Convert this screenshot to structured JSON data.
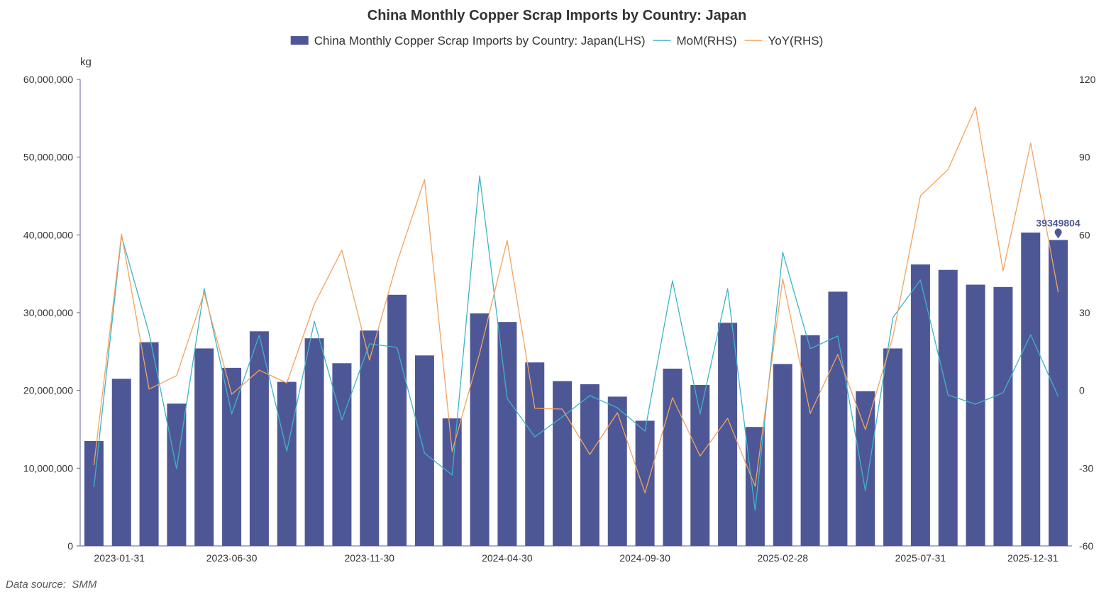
{
  "source": "Data source:  SMM",
  "colors": {
    "bar": "#4e5796",
    "mom": "#3db4c6",
    "yoy": "#f2a35e",
    "axis": "#5d6392",
    "text": "#333333"
  },
  "chart_data": {
    "type": "bar",
    "title": "China Monthly Copper Scrap Imports by Country: Japan",
    "legend_position": "top-center",
    "grid": false,
    "categories": [
      "2023-01-31",
      "2023-02-28",
      "2023-03-31",
      "2023-04-30",
      "2023-05-31",
      "2023-06-30",
      "2023-07-31",
      "2023-08-31",
      "2023-09-30",
      "2023-10-31",
      "2023-11-30",
      "2023-12-31",
      "2024-01-31",
      "2024-02-29",
      "2024-03-31",
      "2024-04-30",
      "2024-05-31",
      "2024-06-30",
      "2024-07-31",
      "2024-08-31",
      "2024-09-30",
      "2024-10-31",
      "2024-11-30",
      "2024-12-31",
      "2025-01-31",
      "2025-02-28",
      "2025-03-31",
      "2025-04-30",
      "2025-05-31",
      "2025-06-30",
      "2025-07-31",
      "2025-08-31",
      "2025-09-30",
      "2025-10-31",
      "2025-11-30",
      "2025-12-31"
    ],
    "x_tick_labels": [
      "2023-01-31",
      "2023-06-30",
      "2023-11-30",
      "2024-04-30",
      "2024-09-30",
      "2025-02-28",
      "2025-07-31",
      "2025-12-31"
    ],
    "left_axis": {
      "unit": "kg",
      "range": [
        0,
        60000000
      ],
      "tick_labels": [
        "60,000,000",
        "50,000,000",
        "40,000,000",
        "30,000,000",
        "20,000,000",
        "10,000,000",
        "0"
      ]
    },
    "right_axis": {
      "range": [
        -60,
        120
      ],
      "tick_labels": [
        "120",
        "90",
        "60",
        "30",
        "0",
        "-30",
        "-60"
      ]
    },
    "series": [
      {
        "name": "China Monthly Copper Scrap Imports by Country: Japan(LHS)",
        "type": "bar",
        "axis": "left",
        "values": [
          13500000,
          21500000,
          26200000,
          18300000,
          25400000,
          22900000,
          27600000,
          21100000,
          26700000,
          23500000,
          27700000,
          32300000,
          24500000,
          16400000,
          29900000,
          28800000,
          23600000,
          21200000,
          20800000,
          19200000,
          16100000,
          22800000,
          20700000,
          28700000,
          15300000,
          23400000,
          27100000,
          32700000,
          19900000,
          25400000,
          36200000,
          35500000,
          33600000,
          33300000,
          40300000,
          39349804
        ]
      },
      {
        "name": "MoM(RHS)",
        "type": "line",
        "axis": "right",
        "values": [
          -37.3,
          59.5,
          22.1,
          -30.2,
          39.3,
          -9.1,
          21.3,
          -23.4,
          26.7,
          -11.4,
          18.0,
          16.6,
          -24.2,
          -32.6,
          82.8,
          -3.1,
          -17.9,
          -10.2,
          -2.0,
          -6.7,
          -15.7,
          42.3,
          -9.1,
          39.3,
          -46.3,
          53.3,
          16.1,
          21.0,
          -38.7,
          28.1,
          42.6,
          -1.8,
          -5.3,
          -0.9,
          21.5,
          -2.4
        ]
      },
      {
        "name": "YoY(RHS)",
        "type": "line",
        "axis": "right",
        "values": [
          -28.8,
          60.3,
          0.5,
          5.7,
          37.7,
          -1.5,
          7.8,
          2.9,
          33.3,
          54.1,
          11.7,
          49.4,
          81.4,
          -23.6,
          14.4,
          57.9,
          -6.9,
          -7.2,
          -24.7,
          -8.6,
          -39.5,
          -2.8,
          -25.3,
          -10.8,
          -37.0,
          43.1,
          -8.9,
          13.9,
          -15.1,
          20.7,
          75.1,
          85.2,
          109.3,
          46.1,
          95.4,
          37.9
        ]
      }
    ],
    "annotation": {
      "category": "2025-12-31",
      "label": "39349804"
    }
  }
}
